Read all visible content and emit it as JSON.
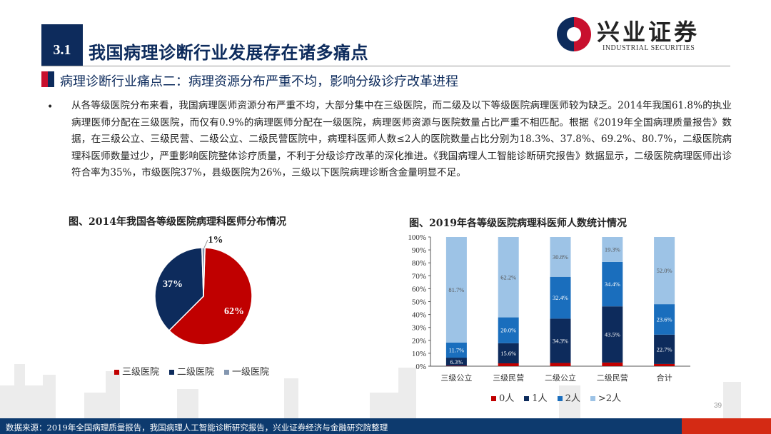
{
  "header": {
    "section_number": "3.1",
    "title": "我国病理诊断行业发展存在诸多痛点",
    "subtitle": "病理诊断行业痛点二：病理资源分布严重不均，影响分级诊疗改革进程"
  },
  "logo": {
    "cn": "兴业证券",
    "en": "INDUSTRIAL SECURITIES"
  },
  "body": {
    "bullet": "•",
    "text": "从各等级医院分布来看，我国病理医师资源分布严重不均，大部分集中在三级医院，而二级及以下等级医院病理医师较为缺乏。2014年我国61.8%的执业病理医师分配在三级医院，而仅有0.9%的病理医师分配在一级医院，病理医师资源与医院数量占比严重不相匹配。根据《2019年全国病理质量报告》数据，在三级公立、三级民营、二级公立、二级民营医院中，病理科医师人数≤2人的医院数量占比分别为18.3%、37.8%、69.2%、80.7%，二级医院病理科医师数量过少，严重影响医院整体诊疗质量，不利于分级诊疗改革的深化推进。《我国病理人工智能诊断研究报告》数据显示，二级医院病理医师出诊符合率为35%，市级医院37%，县级医院为26%，三级以下医院病理诊断含金量明显不足。"
  },
  "chart_data": [
    {
      "type": "pie",
      "title": "图、2014年我国各等级医院病理科医师分布情况",
      "labels": [
        "三级医院",
        "二级医院",
        "一级医院"
      ],
      "values": [
        62,
        37,
        1
      ],
      "data_labels": [
        "62%",
        "37%",
        "1%"
      ],
      "colors": [
        "#c00000",
        "#0d2b5c",
        "#8497b0"
      ],
      "legend_placement": "bottom"
    },
    {
      "type": "bar",
      "stacked": true,
      "title": "图、2019年各等级医院病理科医师人数统计情况",
      "categories": [
        "三级公立",
        "三级民营",
        "二级公立",
        "二级民营",
        "合计"
      ],
      "series": [
        {
          "name": "0人",
          "values": [
            0.3,
            2.2,
            2.5,
            2.8,
            1.7
          ],
          "color": "#c00000",
          "labels": [
            "",
            "",
            "",
            "",
            ""
          ]
        },
        {
          "name": "1人",
          "values": [
            6.3,
            15.6,
            34.3,
            43.5,
            22.7
          ],
          "color": "#0d2b5c",
          "labels": [
            "6.3%",
            "15.6%",
            "34.3%",
            "43.5%",
            "22.7%"
          ]
        },
        {
          "name": "2人",
          "values": [
            11.7,
            20.0,
            32.4,
            34.4,
            23.6
          ],
          "color": "#1a6ebd",
          "labels": [
            "11.7%",
            "20.0%",
            "32.4%",
            "34.4%",
            "23.6%"
          ]
        },
        {
          "name": ">2人",
          "values": [
            81.7,
            62.2,
            30.8,
            19.3,
            52.0
          ],
          "color": "#9dc3e6",
          "labels": [
            "81.7%",
            "62.2%",
            "30.8%",
            "19.3%",
            "52.0%"
          ]
        }
      ],
      "yticks": [
        "0%",
        "10%",
        "20%",
        "30%",
        "40%",
        "50%",
        "60%",
        "70%",
        "80%",
        "90%",
        "100%"
      ],
      "ylim": [
        0,
        100
      ],
      "legend_placement": "bottom"
    }
  ],
  "footer": {
    "source": "数据来源：2019年全国病理质量报告，我国病理人工智能诊断研究报告，兴业证券经济与金融研究院整理",
    "page": "39"
  }
}
